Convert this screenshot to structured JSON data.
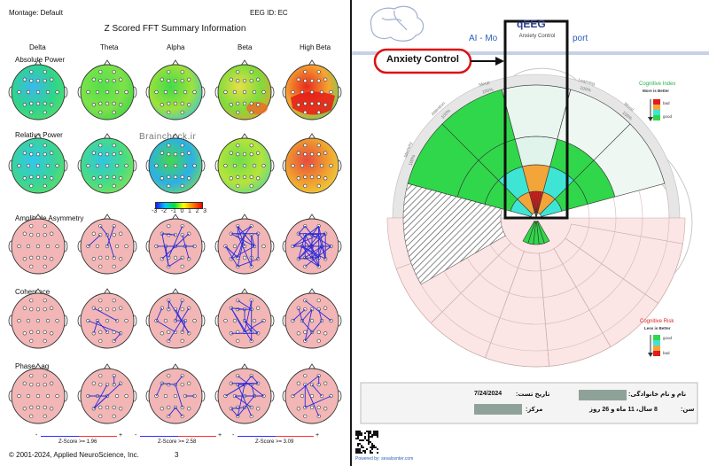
{
  "left": {
    "montage": "Montage:  Default",
    "eeg_id": "EEG ID:  EC",
    "title": "Z Scored FFT Summary Information",
    "bands": [
      "Delta",
      "Theta",
      "Alpha",
      "Beta",
      "High Beta"
    ],
    "sections": [
      "Absolute Power",
      "Relative Power",
      "Amplitude Asymmetry",
      "Coherence",
      "Phase Lag"
    ],
    "watermark": "Braincheck.ir",
    "colorbar_ticks": [
      "-3",
      "-2",
      "-1",
      "0",
      "1",
      "2",
      "3"
    ],
    "zscores": [
      {
        "minus": "-",
        "label": "Z-Score >= 1.96",
        "plus": "+"
      },
      {
        "minus": "-",
        "label": "Z-Score >= 2.58",
        "plus": "+"
      },
      {
        "minus": "-",
        "label": "Z-Score >= 3.09",
        "plus": "+"
      }
    ],
    "copyright": "© 2001-2024, Applied NeuroScience, Inc.",
    "page_number": "3"
  },
  "right": {
    "header_title": "qEEG",
    "subtitle_left": "AI - Mo",
    "subtitle_right": "port",
    "highlight_label": "Anxiety Control",
    "callout": "Anxiety Control",
    "segment_labels": [
      "Memory",
      "Attention",
      "Sleep",
      "Learning",
      "Mood"
    ],
    "pct_labels": [
      "100%",
      "100%",
      "100%",
      "100%",
      "100%"
    ],
    "legend_top": {
      "title": "Cognitive Index",
      "subtitle": "More is Better",
      "bad": "bad",
      "good": "good"
    },
    "legend_bottom": {
      "title": "Cognitive Risk",
      "subtitle": "Less is Better",
      "good": "good",
      "bad": "bad"
    },
    "info": {
      "name_label": "نام و نام خانوادگی:",
      "date_label": "تاریخ تست:",
      "date_value": "7/24/2024",
      "age_label": "سن:",
      "age_value": "8 سال، 11 ماه و 26 روز",
      "center_label": "مرکز:"
    },
    "footer": "Powered by: sesalcenter.com"
  }
}
